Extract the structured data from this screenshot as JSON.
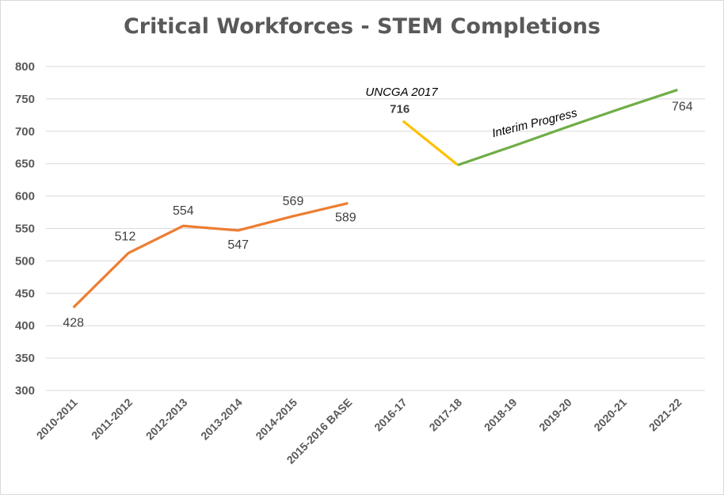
{
  "chart_data": {
    "type": "line",
    "title": "Critical Workforces - STEM Completions",
    "xlabel": "",
    "ylabel": "",
    "ylim": [
      300,
      800
    ],
    "yticks": [
      "300",
      "350",
      "400",
      "450",
      "500",
      "550",
      "600",
      "650",
      "700",
      "750",
      "800"
    ],
    "categories": [
      "2010-2011",
      "2011-2012",
      "2012-2013",
      "2013-2014",
      "2014-2015",
      "2015-2016 BASE",
      "2016-17",
      "2017-18",
      "2018-19",
      "2019-20",
      "2020-21",
      "2021-22"
    ],
    "grid": true,
    "series": [
      {
        "color": "#ED7D31",
        "values": [
          428,
          512,
          554,
          547,
          569,
          589,
          null,
          null,
          null,
          null,
          null,
          null
        ],
        "labels": [
          "428",
          "512",
          "554",
          "547",
          "569",
          "589",
          "",
          "",
          "",
          "",
          "",
          ""
        ]
      },
      {
        "color": "#FFC000",
        "values": [
          null,
          null,
          null,
          null,
          null,
          null,
          716,
          648,
          null,
          null,
          null,
          null
        ],
        "labels": [
          "",
          "",
          "",
          "",
          "",
          "",
          "716",
          "",
          "",
          "",
          "",
          ""
        ]
      },
      {
        "color": "#70AD47",
        "values": [
          null,
          null,
          null,
          null,
          null,
          null,
          null,
          648,
          677,
          707,
          736,
          764
        ],
        "labels": [
          "",
          "",
          "",
          "",
          "",
          "",
          "",
          "",
          "",
          "",
          "",
          "764"
        ]
      }
    ],
    "annotations": [
      {
        "text": "UNCGA 2017"
      },
      {
        "text": "Interim Progress"
      }
    ]
  }
}
